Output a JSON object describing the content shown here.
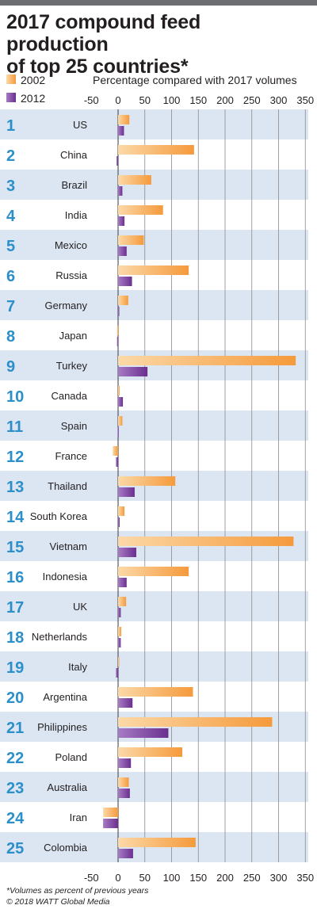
{
  "title_line1": "2017 compound feed production",
  "title_line2": "of top 25 countries*",
  "footnote_line1": "*Volumes as percent of previous years",
  "footnote_line2": "© 2018 WATT Global Media",
  "colors": {
    "series_2002": "#f7a54a",
    "series_2012": "#7b3f9e",
    "rank": "#2b8fc9",
    "band": "#dce6f2",
    "topbar": "#6d6e71"
  },
  "chart_data": {
    "type": "bar",
    "orientation": "horizontal",
    "xlabel": "Percentage compared with 2017 volumes",
    "xlim": [
      -50,
      350
    ],
    "xticks": [
      -50,
      0,
      50,
      100,
      150,
      200,
      250,
      300,
      350
    ],
    "grid": true,
    "legend": "top-left",
    "ranks": [
      1,
      2,
      3,
      4,
      5,
      6,
      7,
      8,
      9,
      10,
      11,
      12,
      13,
      14,
      15,
      16,
      17,
      18,
      19,
      20,
      21,
      22,
      23,
      24,
      25
    ],
    "categories": [
      "US",
      "China",
      "Brazil",
      "India",
      "Mexico",
      "Russia",
      "Germany",
      "Japan",
      "Turkey",
      "Canada",
      "Spain",
      "France",
      "Thailand",
      "South Korea",
      "Vietnam",
      "Indonesia",
      "UK",
      "Netherlands",
      "Italy",
      "Argentina",
      "Philippines",
      "Poland",
      "Australia",
      "Iran",
      "Colombia"
    ],
    "series": [
      {
        "name": "2002",
        "values": [
          21,
          142,
          62,
          84,
          48,
          132,
          19,
          -2,
          332,
          3,
          8,
          -10,
          107,
          12,
          328,
          132,
          15,
          6,
          2,
          140,
          288,
          120,
          20,
          -28,
          145
        ]
      },
      {
        "name": "2012",
        "values": [
          11,
          -3,
          8,
          12,
          16,
          26,
          2,
          -2,
          55,
          9,
          -1,
          -4,
          31,
          3,
          34,
          16,
          5,
          5,
          -4,
          27,
          94,
          24,
          22,
          -28,
          28
        ]
      }
    ]
  }
}
